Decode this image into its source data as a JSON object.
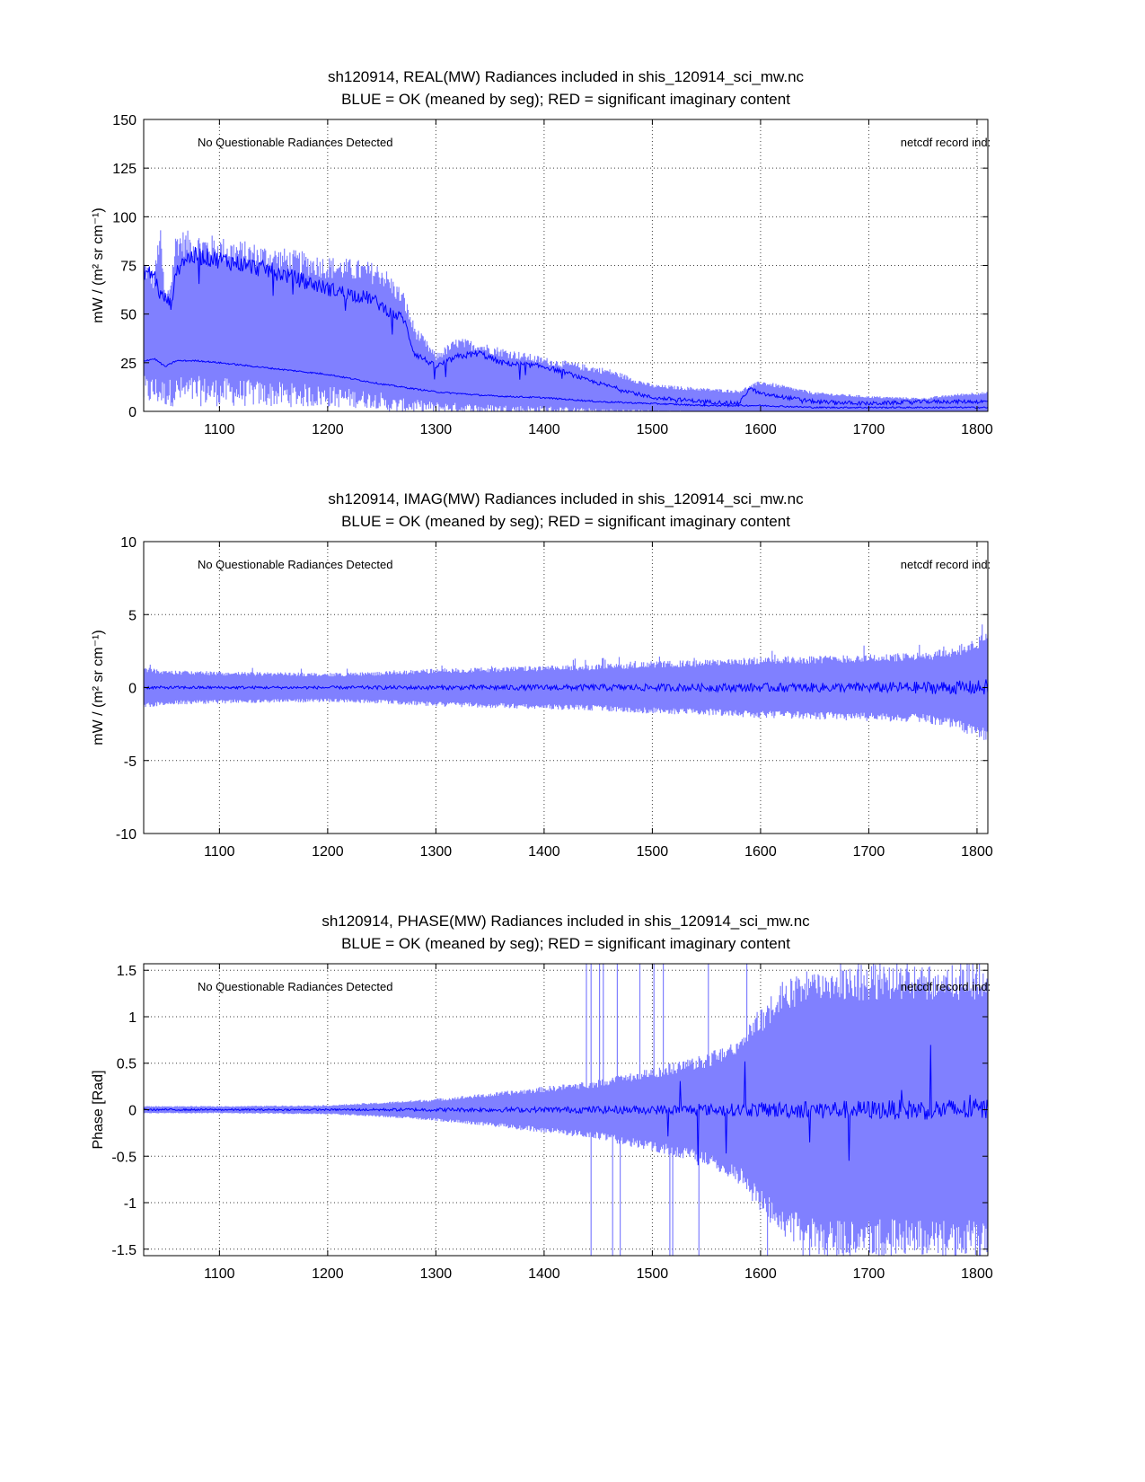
{
  "chart_data": [
    {
      "type": "line",
      "id": "real",
      "title": "sh120914, REAL(MW) Radiances included in shis_120914_sci_mw.nc",
      "subtitle": "BLUE = OK (meaned by seg); RED = significant imaginary content",
      "ylabel": "mW / (m² sr cm⁻¹)",
      "xlabel": "",
      "xlim": [
        1030,
        1810
      ],
      "ylim": [
        0,
        150
      ],
      "xticks": [
        1100,
        1200,
        1300,
        1400,
        1500,
        1600,
        1700,
        1800
      ],
      "yticks": [
        0,
        25,
        50,
        75,
        100,
        125,
        150
      ],
      "grid": true,
      "annotation_left": "No Questionable Radiances Detected",
      "annotation_right": "netcdf record ind:",
      "colors": {
        "envelope": "#8080ff",
        "mean": "#0000ff"
      },
      "series": [
        {
          "name": "envelope-upper",
          "x": [
            1030,
            1040,
            1045,
            1050,
            1055,
            1060,
            1080,
            1100,
            1150,
            1200,
            1230,
            1250,
            1270,
            1280,
            1300,
            1320,
            1340,
            1360,
            1400,
            1440,
            1460,
            1500,
            1550,
            1580,
            1600,
            1650,
            1700,
            1750,
            1780,
            1800,
            1810
          ],
          "y": [
            80,
            72,
            98,
            60,
            70,
            94,
            92,
            90,
            85,
            80,
            78,
            76,
            62,
            45,
            30,
            38,
            36,
            33,
            28,
            24,
            22,
            14,
            12,
            11,
            16,
            10,
            8,
            7,
            9,
            10,
            10
          ]
        },
        {
          "name": "mean-upper",
          "x": [
            1030,
            1040,
            1045,
            1050,
            1055,
            1060,
            1065,
            1080,
            1100,
            1150,
            1200,
            1240,
            1260,
            1270,
            1280,
            1300,
            1320,
            1340,
            1360,
            1400,
            1420,
            1440,
            1460,
            1480,
            1500,
            1550,
            1580,
            1590,
            1600,
            1650,
            1700,
            1750,
            1800,
            1810
          ],
          "y": [
            72,
            70,
            60,
            58,
            55,
            70,
            78,
            80,
            78,
            72,
            63,
            58,
            50,
            48,
            30,
            23,
            28,
            30,
            25,
            23,
            20,
            16,
            13,
            10,
            7,
            5,
            4,
            12,
            9,
            5,
            4,
            5,
            5,
            5
          ]
        },
        {
          "name": "mean-lower",
          "x": [
            1030,
            1040,
            1050,
            1060,
            1080,
            1100,
            1150,
            1200,
            1250,
            1300,
            1350,
            1400,
            1450,
            1500,
            1550,
            1600,
            1650,
            1700,
            1750,
            1800,
            1810
          ],
          "y": [
            26,
            27,
            23,
            26,
            26,
            25,
            22,
            19,
            14,
            10,
            8,
            7,
            5,
            4,
            3,
            3,
            2,
            2,
            2,
            2,
            2
          ]
        }
      ]
    },
    {
      "type": "line",
      "id": "imag",
      "title": "sh120914, IMAG(MW) Radiances included in shis_120914_sci_mw.nc",
      "subtitle": "BLUE = OK (meaned by seg); RED = significant imaginary content",
      "ylabel": "mW / (m² sr cm⁻¹)",
      "xlabel": "",
      "xlim": [
        1030,
        1810
      ],
      "ylim": [
        -10,
        10
      ],
      "xticks": [
        1100,
        1200,
        1300,
        1400,
        1500,
        1600,
        1700,
        1800
      ],
      "yticks": [
        -10,
        -5,
        0,
        5,
        10
      ],
      "grid": true,
      "annotation_left": "No Questionable Radiances Detected",
      "annotation_right": "netcdf record ind:",
      "colors": {
        "envelope": "#8080ff",
        "mean": "#0000ff"
      },
      "series": [
        {
          "name": "envelope",
          "x": [
            1030,
            1050,
            1100,
            1150,
            1200,
            1250,
            1300,
            1350,
            1400,
            1450,
            1500,
            1550,
            1600,
            1650,
            1700,
            1750,
            1780,
            1800,
            1810
          ],
          "amplitude": [
            1.4,
            1.2,
            1.1,
            1.05,
            1.0,
            1.1,
            1.3,
            1.4,
            1.5,
            1.6,
            1.8,
            1.9,
            2.1,
            2.2,
            2.3,
            2.4,
            2.8,
            3.5,
            3.8
          ]
        },
        {
          "name": "mean",
          "x": [
            1030,
            1100,
            1200,
            1300,
            1400,
            1500,
            1600,
            1700,
            1800,
            1810
          ],
          "amplitude": [
            0.1,
            0.1,
            0.1,
            0.15,
            0.2,
            0.25,
            0.3,
            0.35,
            0.5,
            0.6
          ]
        }
      ]
    },
    {
      "type": "line",
      "id": "phase",
      "title": "sh120914, PHASE(MW) Radiances included in shis_120914_sci_mw.nc",
      "subtitle": "BLUE = OK (meaned by seg); RED = significant imaginary content",
      "ylabel": "Phase [Rad]",
      "xlabel": "",
      "xlim": [
        1030,
        1810
      ],
      "ylim": [
        -1.57,
        1.57
      ],
      "xticks": [
        1100,
        1200,
        1300,
        1400,
        1500,
        1600,
        1700,
        1800
      ],
      "yticks": [
        -1.5,
        -1,
        -0.5,
        0,
        0.5,
        1,
        1.5
      ],
      "grid": true,
      "annotation_left": "No Questionable Radiances Detected",
      "annotation_right": "netcdf record ind:",
      "colors": {
        "envelope": "#8080ff",
        "mean": "#0000ff"
      },
      "series": [
        {
          "name": "envelope",
          "x": [
            1030,
            1100,
            1200,
            1250,
            1300,
            1350,
            1400,
            1450,
            1500,
            1550,
            1580,
            1600,
            1620,
            1650,
            1700,
            1800,
            1810
          ],
          "amplitude": [
            0.04,
            0.04,
            0.05,
            0.08,
            0.12,
            0.18,
            0.25,
            0.32,
            0.45,
            0.6,
            0.8,
            1.1,
            1.4,
            1.57,
            1.57,
            1.57,
            1.57
          ]
        },
        {
          "name": "mean",
          "x": [
            1030,
            1200,
            1300,
            1400,
            1500,
            1550,
            1600,
            1650,
            1700,
            1800,
            1810
          ],
          "amplitude": [
            0.01,
            0.01,
            0.02,
            0.03,
            0.05,
            0.06,
            0.08,
            0.1,
            0.1,
            0.12,
            0.12
          ]
        }
      ]
    }
  ]
}
